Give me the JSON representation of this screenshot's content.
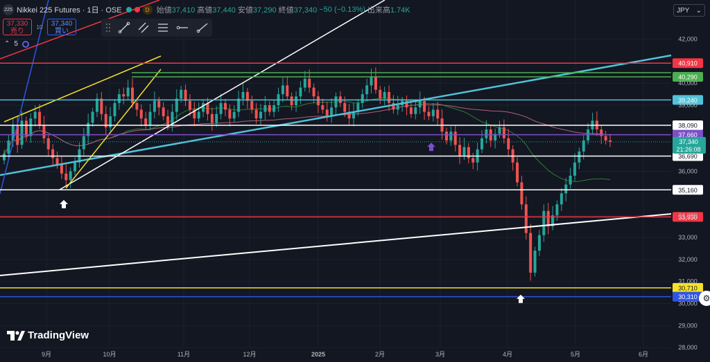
{
  "header": {
    "logo_text": "225",
    "title": "Nikkei 225 Futures · 1日 · OSE",
    "badge": "D",
    "open_label": "始値",
    "open": "37,410",
    "high_label": "高値",
    "high": "37,440",
    "low_label": "安値",
    "low": "37,290",
    "close_label": "終値",
    "close": "37,340",
    "change": "−50 (−0.13%)",
    "volume_label": "出来高",
    "volume": "1.74K"
  },
  "trade": {
    "sell_price": "37,330",
    "sell_label": "売り",
    "spread": "10",
    "buy_price": "37,340",
    "buy_label": "買い"
  },
  "indicator": {
    "count": "5"
  },
  "currency": "JPY",
  "branding": "TradingView",
  "colors": {
    "background": "#131722",
    "up": "#26a69a",
    "down": "#ef5350",
    "red_line": "#f23645",
    "green_line": "#4caf50",
    "cyan_line": "#4fc3d9",
    "purple_line": "#7b4fc9",
    "yellow_line": "#f5e12a",
    "blue_line": "#2f55e0"
  },
  "chart_data": {
    "type": "candlestick",
    "ylim": [
      27700,
      42800
    ],
    "y_ticks": [
      "42,000",
      "40,000",
      "39,000",
      "36,000",
      "34,000",
      "33,000",
      "32,000",
      "31,000",
      "30,000",
      "29,000",
      "28,000"
    ],
    "x_ticks": [
      "9月",
      "10月",
      "11月",
      "12月",
      "2025",
      "2月",
      "3月",
      "4月",
      "5月",
      "6月"
    ],
    "horizontal_levels": [
      {
        "label": "40,910",
        "value": 40910,
        "color": "#f23645"
      },
      {
        "label": "40,290",
        "value": 40290,
        "color": "#4caf50"
      },
      {
        "label": "39,240",
        "value": 39240,
        "color": "#4fc3d9"
      },
      {
        "label": "38,090",
        "value": 38090,
        "color": "#ffffff"
      },
      {
        "label": "37,660",
        "value": 37660,
        "color": "#7b4fc9"
      },
      {
        "label": "36,690",
        "value": 36690,
        "color": "#ffffff"
      },
      {
        "label": "35,160",
        "value": 35160,
        "color": "#ffffff"
      },
      {
        "label": "33,930",
        "value": 33930,
        "color": "#f23645"
      },
      {
        "label": "30,710",
        "value": 30710,
        "color": "#f5e12a"
      },
      {
        "label": "30,310",
        "value": 30310,
        "color": "#2f55e0"
      }
    ],
    "last_price": {
      "label": "37,340",
      "value": 37340,
      "countdown": "21:26:08"
    },
    "candles_close": [
      36800,
      37400,
      38100,
      37200,
      38300,
      37600,
      38400,
      38700,
      38100,
      37500,
      37000,
      36600,
      36300,
      35900,
      35600,
      36000,
      36400,
      37000,
      37600,
      38200,
      38700,
      39300,
      38600,
      38000,
      38500,
      39100,
      39500,
      39400,
      39800,
      39100,
      38800,
      38400,
      38100,
      38700,
      39200,
      38900,
      38500,
      38100,
      38700,
      39300,
      39700,
      39200,
      38800,
      38400,
      38700,
      39100,
      38600,
      38200,
      38600,
      39100,
      38800,
      38400,
      38700,
      39300,
      39600,
      39200,
      38800,
      38400,
      38700,
      39000,
      38700,
      39000,
      39500,
      39900,
      39400,
      39000,
      39400,
      39800,
      40200,
      39800,
      39400,
      39000,
      38800,
      38500,
      38900,
      39400,
      39100,
      38700,
      38400,
      38700,
      39100,
      39500,
      39900,
      40300,
      39700,
      39300,
      39600,
      39100,
      38800,
      39000,
      39200,
      38900,
      38600,
      38900,
      39200,
      38700,
      38500,
      38800,
      38400,
      37800,
      37400,
      37800,
      37200,
      36700,
      37100,
      36600,
      36400,
      37000,
      37500,
      37900,
      37400,
      37700,
      38000,
      37500,
      37000,
      36400,
      35500,
      34500,
      33200,
      31400,
      32400,
      33100,
      34200,
      33500,
      34000,
      34500,
      35000,
      35400,
      35800,
      36400,
      36900,
      37400,
      37900,
      38300,
      37900,
      37600,
      37400,
      37340
    ],
    "markers": [
      {
        "label": "arrow-up",
        "value": 34700,
        "color": "#ffffff"
      },
      {
        "label": "arrow-up",
        "value": 37300,
        "color": "#7b4fc9"
      },
      {
        "label": "arrow-up",
        "value": 30400,
        "color": "#ffffff"
      }
    ]
  }
}
